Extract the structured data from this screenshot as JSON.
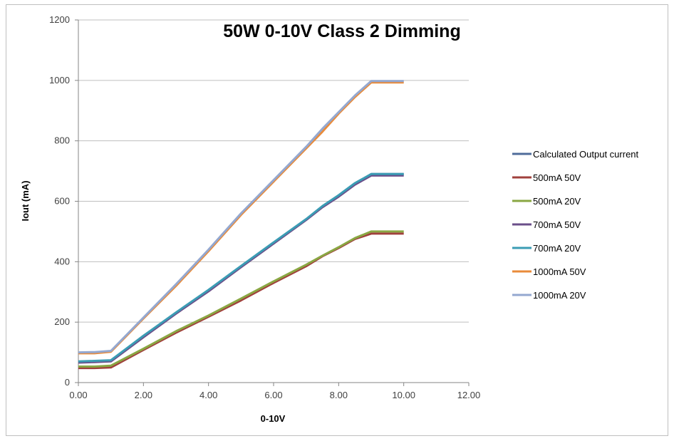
{
  "chart_data": {
    "type": "line",
    "title": "50W 0-10V Class 2 Dimming",
    "xlabel": "0-10V",
    "ylabel": "Iout (mA)",
    "xlim": [
      0,
      12
    ],
    "ylim": [
      0,
      1200
    ],
    "x_ticks": [
      "0.00",
      "2.00",
      "4.00",
      "6.00",
      "8.00",
      "10.00",
      "12.00"
    ],
    "y_ticks": [
      "0",
      "200",
      "400",
      "600",
      "800",
      "1000",
      "1200"
    ],
    "grid": "horizontal",
    "legend_position": "right",
    "x": [
      0,
      0.5,
      1,
      2,
      3,
      4,
      5,
      6,
      7,
      7.5,
      8,
      8.5,
      9,
      9.5,
      10
    ],
    "series": [
      {
        "name": "Calculated Output current",
        "color": "#4F6C9A",
        "values": [
          68,
          70,
          72,
          155,
          230,
          305,
          385,
          463,
          540,
          583,
          618,
          658,
          690,
          690,
          690
        ]
      },
      {
        "name": "500mA 50V",
        "color": "#A0403C",
        "values": [
          48,
          48,
          50,
          108,
          165,
          218,
          272,
          330,
          385,
          418,
          445,
          475,
          493,
          493,
          493
        ]
      },
      {
        "name": "500mA 20V",
        "color": "#8AA743",
        "values": [
          53,
          53,
          56,
          112,
          170,
          222,
          278,
          335,
          390,
          420,
          448,
          478,
          500,
          500,
          500
        ]
      },
      {
        "name": "700mA 50V",
        "color": "#6B4F8A",
        "values": [
          66,
          68,
          70,
          150,
          228,
          302,
          382,
          460,
          538,
          580,
          615,
          655,
          685,
          685,
          685
        ]
      },
      {
        "name": "700mA 20V",
        "color": "#3B9CB4",
        "values": [
          70,
          72,
          74,
          155,
          232,
          307,
          386,
          464,
          541,
          584,
          620,
          660,
          690,
          690,
          690
        ]
      },
      {
        "name": "1000mA 50V",
        "color": "#E98B3A",
        "values": [
          97,
          97,
          102,
          212,
          320,
          435,
          555,
          665,
          775,
          830,
          890,
          945,
          993,
          993,
          993
        ]
      },
      {
        "name": "1000mA 20V",
        "color": "#94A8D0",
        "values": [
          100,
          101,
          105,
          215,
          325,
          440,
          560,
          670,
          780,
          840,
          895,
          950,
          998,
          998,
          998
        ]
      }
    ]
  }
}
